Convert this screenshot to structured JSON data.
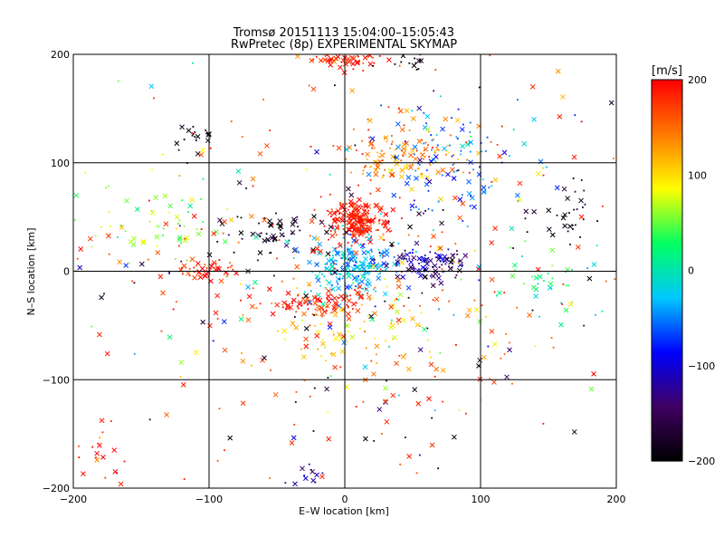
{
  "chart_data": {
    "type": "scatter",
    "title": "Tromsø 20151113 15:04:00–15:05:43",
    "subtitle": "RwPretec (8p) EXPERIMENTAL SKYMAP",
    "xlabel": "E–W location [km]",
    "ylabel": "N–S location [km]",
    "xlim": [
      -200,
      200
    ],
    "ylim": [
      -200,
      200
    ],
    "xticks": [
      -200,
      -100,
      0,
      100,
      200
    ],
    "yticks": [
      -200,
      -100,
      0,
      100,
      200
    ],
    "grid": true,
    "colorbar": {
      "label": "[m/s]",
      "range": [
        -200,
        200
      ],
      "ticks": [
        -200,
        -100,
        0,
        100,
        200
      ],
      "colors": [
        "#000000",
        "#400060",
        "#0000ff",
        "#00c8ff",
        "#00ff60",
        "#ffff00",
        "#ff7a00",
        "#ff0000"
      ]
    },
    "markers": [
      "dot",
      "x"
    ],
    "clusters": [
      {
        "x": 0,
        "y": 200,
        "sx": 14,
        "sy": 6,
        "n": 90,
        "v": 180
      },
      {
        "x": 45,
        "y": 195,
        "sx": 12,
        "sy": 6,
        "n": 14,
        "v": -200
      },
      {
        "x": 10,
        "y": 45,
        "sx": 12,
        "sy": 9,
        "n": 210,
        "v": 190
      },
      {
        "x": -50,
        "y": 35,
        "sx": 18,
        "sy": 10,
        "n": 55,
        "v": -190
      },
      {
        "x": 5,
        "y": 3,
        "sx": 16,
        "sy": 13,
        "n": 200,
        "v": -30
      },
      {
        "x": 55,
        "y": 10,
        "sx": 14,
        "sy": 6,
        "n": 70,
        "v": -110
      },
      {
        "x": 75,
        "y": 8,
        "sx": 9,
        "sy": 6,
        "n": 30,
        "v": -170
      },
      {
        "x": 40,
        "y": 110,
        "sx": 25,
        "sy": 14,
        "n": 130,
        "v": 140
      },
      {
        "x": 80,
        "y": 100,
        "sx": 28,
        "sy": 28,
        "n": 110,
        "v": -60
      },
      {
        "x": -20,
        "y": -30,
        "sx": 20,
        "sy": 6,
        "n": 90,
        "v": 190
      },
      {
        "x": -100,
        "y": 0,
        "sx": 14,
        "sy": 5,
        "n": 45,
        "v": 190
      },
      {
        "x": -140,
        "y": 45,
        "sx": 30,
        "sy": 20,
        "n": 60,
        "v": 60
      },
      {
        "x": -110,
        "y": 125,
        "sx": 10,
        "sy": 8,
        "n": 20,
        "v": -195
      },
      {
        "x": 160,
        "y": 50,
        "sx": 14,
        "sy": 18,
        "n": 30,
        "v": -190
      },
      {
        "x": 150,
        "y": -10,
        "sx": 25,
        "sy": 18,
        "n": 40,
        "v": 20
      },
      {
        "x": -180,
        "y": -170,
        "sx": 10,
        "sy": 15,
        "n": 20,
        "v": 190
      },
      {
        "x": -30,
        "y": -190,
        "sx": 10,
        "sy": 6,
        "n": 12,
        "v": -120
      },
      {
        "x": 20,
        "y": -60,
        "sx": 50,
        "sy": 30,
        "n": 100,
        "v": 100
      },
      {
        "x": 0,
        "y": 0,
        "sx": 110,
        "sy": 100,
        "n": 420,
        "v": 0
      }
    ]
  }
}
